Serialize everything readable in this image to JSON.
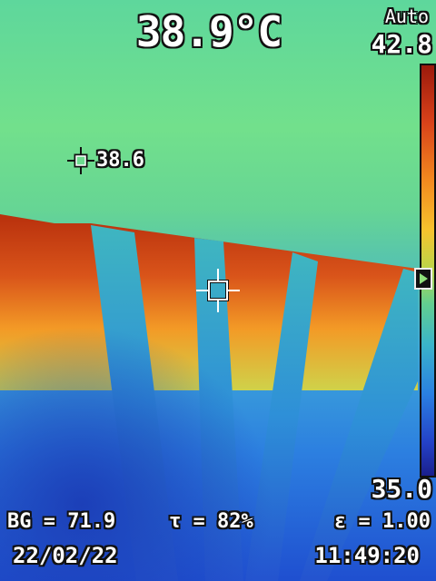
{
  "header": {
    "center_temperature": "38.9°C"
  },
  "scale": {
    "mode": "Auto",
    "max": "42.8",
    "min": "35.0",
    "marker_fraction": 0.52
  },
  "spot_marker": {
    "value": "38.6"
  },
  "parameters": {
    "background": "BG = 71.9",
    "transmission": "τ = 82%",
    "emissivity": "ε = 1.00"
  },
  "footer": {
    "date": "22/02/22",
    "time": "11:49:20"
  },
  "palette": {
    "hot": "#c2360f",
    "warm": "#f2891f",
    "mid": "#63cf8f",
    "cool": "#2a80e2",
    "cold": "#1a1f8d"
  }
}
